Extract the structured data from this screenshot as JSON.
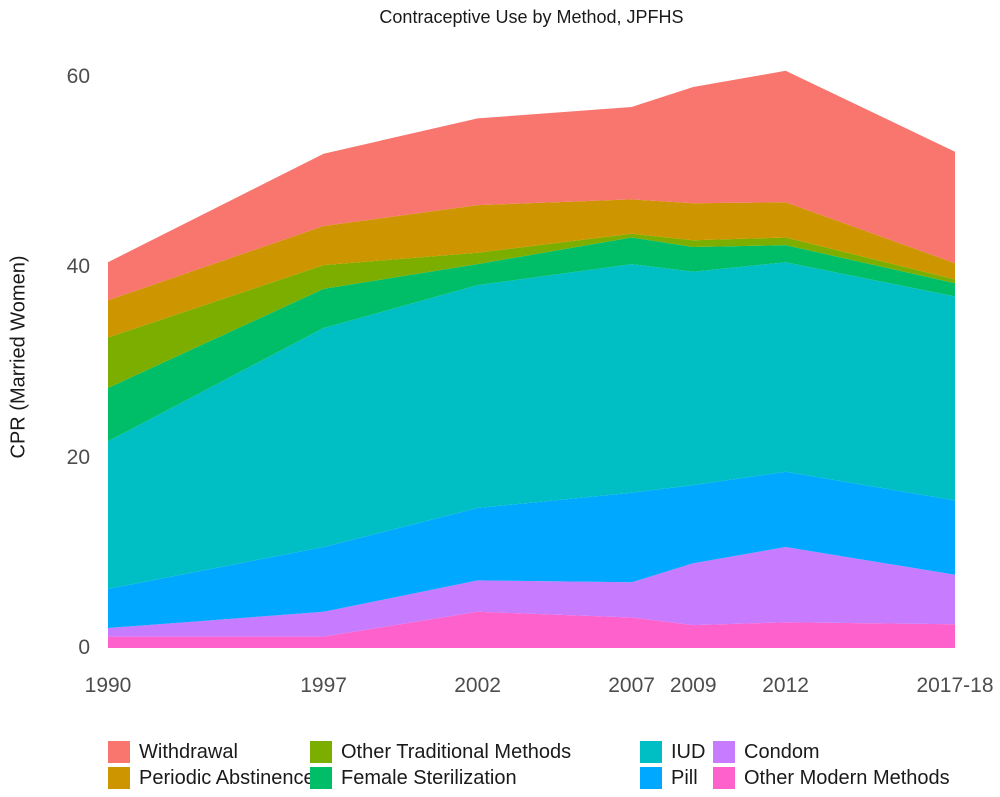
{
  "title": "Contraceptive Use by Method, JPFHS",
  "y_axis": {
    "label": "CPR (Married Women)",
    "tick_labels": [
      "0",
      "20",
      "40",
      "60"
    ],
    "tick_values": [
      0,
      20,
      40,
      60
    ]
  },
  "x_axis": {
    "tick_labels": [
      "1990",
      "1997",
      "2002",
      "2007",
      "2009",
      "2012",
      "2017-18"
    ],
    "tick_years": [
      1990,
      1997,
      2002,
      2007,
      2009,
      2012,
      2017.5
    ]
  },
  "chart_data": {
    "type": "area",
    "stacked": true,
    "title": "Contraceptive Use by Method, JPFHS",
    "xlabel": "",
    "ylabel": "CPR (Married Women)",
    "ylim": [
      0,
      62
    ],
    "grid": false,
    "legend_position": "bottom",
    "x": [
      1990,
      1997,
      2002,
      2007,
      2009,
      2012,
      2017.5
    ],
    "x_tick_labels": [
      "1990",
      "1997",
      "2002",
      "2007",
      "2009",
      "2012",
      "2017-18"
    ],
    "stack_order": "first series is bottom of stack",
    "series": [
      {
        "name": "Other Modern Methods",
        "color": "#FF61CC",
        "values": [
          1.2,
          1.2,
          3.8,
          3.2,
          2.4,
          2.7,
          2.5
        ]
      },
      {
        "name": "Condom",
        "color": "#C77CFF",
        "values": [
          0.9,
          2.6,
          3.3,
          3.7,
          6.5,
          7.9,
          5.2
        ]
      },
      {
        "name": "Pill",
        "color": "#00A9FF",
        "values": [
          4.1,
          6.8,
          7.6,
          9.4,
          8.2,
          7.9,
          7.8
        ]
      },
      {
        "name": "IUD",
        "color": "#00BFC4",
        "values": [
          15.5,
          23.0,
          23.4,
          24.0,
          22.4,
          22.0,
          21.4
        ]
      },
      {
        "name": "Female Sterilization",
        "color": "#00BE67",
        "values": [
          5.6,
          4.1,
          2.2,
          2.8,
          2.6,
          1.8,
          1.4
        ]
      },
      {
        "name": "Other Traditional Methods",
        "color": "#7CAE00",
        "values": [
          5.3,
          2.5,
          1.2,
          0.4,
          0.7,
          0.8,
          0.4
        ]
      },
      {
        "name": "Periodic Abstinence",
        "color": "#CD9600",
        "values": [
          3.9,
          4.1,
          5.0,
          3.6,
          3.9,
          3.7,
          1.7
        ]
      },
      {
        "name": "Withdrawal",
        "color": "#F8766D",
        "values": [
          4.0,
          7.6,
          9.1,
          9.7,
          12.2,
          13.8,
          11.7
        ]
      }
    ],
    "totals_by_year": [
      40.5,
      51.9,
      55.6,
      56.8,
      58.9,
      60.6,
      52.1
    ]
  },
  "legend": {
    "items": [
      {
        "label": "Withdrawal",
        "color": "#F8766D"
      },
      {
        "label": "Periodic Abstinence",
        "color": "#CD9600"
      },
      {
        "label": "Other Traditional Methods",
        "color": "#7CAE00"
      },
      {
        "label": "Female Sterilization",
        "color": "#00BE67"
      },
      {
        "label": "IUD",
        "color": "#00BFC4"
      },
      {
        "label": "Pill",
        "color": "#00A9FF"
      },
      {
        "label": "Condom",
        "color": "#C77CFF"
      },
      {
        "label": "Other Modern Methods",
        "color": "#FF61CC"
      }
    ]
  }
}
